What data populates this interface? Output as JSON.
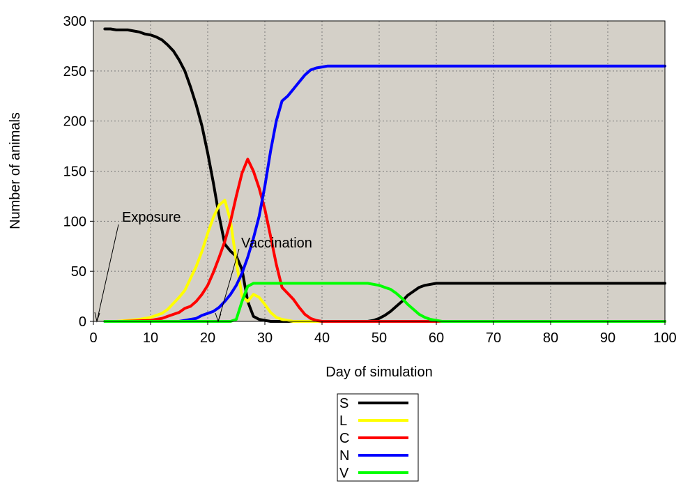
{
  "chart_data": {
    "type": "line",
    "xlabel": "Day of simulation",
    "ylabel": "Number of animals",
    "xlim": [
      0,
      100
    ],
    "ylim": [
      0,
      300
    ],
    "xticks": [
      "0",
      "10",
      "20",
      "30",
      "40",
      "50",
      "60",
      "70",
      "80",
      "90",
      "100"
    ],
    "yticks": [
      "0",
      "50",
      "100",
      "150",
      "200",
      "250",
      "300"
    ],
    "grid": true,
    "legend_placement": "bottom-center",
    "background_color": "#d4d0c8",
    "series": [
      {
        "name": "S",
        "color": "#000000",
        "x": [
          2,
          3,
          4,
          5,
          6,
          7,
          8,
          9,
          10,
          11,
          12,
          13,
          14,
          15,
          16,
          17,
          18,
          19,
          20,
          21,
          22,
          23,
          24,
          25,
          26,
          27,
          28,
          29,
          30,
          31,
          32,
          33,
          34,
          35,
          40,
          45,
          48,
          49,
          50,
          51,
          52,
          53,
          54,
          55,
          56,
          57,
          58,
          59,
          60,
          61,
          62,
          65,
          70,
          80,
          90,
          100
        ],
        "values": [
          292,
          292,
          291,
          291,
          291,
          290,
          289,
          287,
          286,
          284,
          281,
          276,
          270,
          261,
          250,
          234,
          216,
          195,
          168,
          138,
          105,
          77,
          70,
          65,
          52,
          20,
          5,
          2,
          1,
          0,
          0,
          0,
          0,
          0,
          0,
          0,
          0,
          1,
          3,
          6,
          10,
          15,
          20,
          26,
          30,
          34,
          36,
          37,
          38,
          38,
          38,
          38,
          38,
          38,
          38,
          38
        ]
      },
      {
        "name": "L",
        "color": "#ffff00",
        "x": [
          2,
          4,
          6,
          8,
          10,
          11,
          12,
          13,
          14,
          15,
          16,
          17,
          18,
          19,
          20,
          21,
          22,
          23,
          24,
          25,
          26,
          27,
          28,
          29,
          30,
          31,
          32,
          33,
          34,
          35,
          36,
          37,
          38,
          40,
          50,
          60,
          100
        ],
        "values": [
          0,
          0,
          1,
          2,
          4,
          6,
          8,
          12,
          18,
          24,
          31,
          43,
          55,
          70,
          88,
          104,
          116,
          121,
          100,
          60,
          25,
          20,
          27,
          24,
          17,
          9,
          4,
          2,
          1,
          0,
          0,
          0,
          0,
          0,
          0,
          0,
          0
        ]
      },
      {
        "name": "C",
        "color": "#ff0000",
        "x": [
          2,
          5,
          10,
          11,
          12,
          13,
          14,
          15,
          16,
          17,
          18,
          19,
          20,
          21,
          22,
          23,
          24,
          25,
          26,
          27,
          28,
          29,
          30,
          31,
          32,
          33,
          34,
          35,
          36,
          37,
          38,
          39,
          40,
          50,
          60,
          100
        ],
        "values": [
          0,
          0,
          1,
          2,
          3,
          5,
          7,
          9,
          13,
          15,
          20,
          27,
          36,
          49,
          64,
          80,
          100,
          125,
          148,
          162,
          150,
          133,
          112,
          85,
          57,
          34,
          28,
          22,
          14,
          7,
          3,
          1,
          0,
          0,
          0,
          0
        ]
      },
      {
        "name": "N",
        "color": "#0000ff",
        "x": [
          2,
          10,
          15,
          16,
          17,
          18,
          19,
          20,
          21,
          22,
          23,
          24,
          25,
          26,
          27,
          28,
          29,
          30,
          31,
          32,
          33,
          34,
          35,
          36,
          37,
          38,
          39,
          40,
          41,
          42,
          50,
          60,
          70,
          80,
          90,
          100
        ],
        "values": [
          0,
          0,
          0,
          1,
          2,
          3,
          6,
          8,
          10,
          14,
          20,
          27,
          36,
          48,
          64,
          83,
          105,
          135,
          170,
          200,
          220,
          225,
          232,
          239,
          246,
          251,
          253,
          254,
          255,
          255,
          255,
          255,
          255,
          255,
          255,
          255
        ]
      },
      {
        "name": "V",
        "color": "#00ff00",
        "x": [
          2,
          10,
          20,
          24,
          25,
          26,
          27,
          28,
          29,
          30,
          40,
          47,
          48,
          49,
          50,
          51,
          52,
          53,
          54,
          55,
          56,
          57,
          58,
          59,
          60,
          61,
          62,
          70,
          80,
          90,
          100
        ],
        "values": [
          0,
          0,
          0,
          0,
          2,
          20,
          35,
          38,
          38,
          38,
          38,
          38,
          38,
          37,
          36,
          34,
          32,
          28,
          23,
          17,
          12,
          7,
          4,
          2,
          1,
          0,
          0,
          0,
          0,
          0,
          0
        ]
      }
    ],
    "annotations": [
      {
        "text": "Exposure",
        "arrow_to_x": 0.5,
        "arrow_to_y": 0
      },
      {
        "text": "Vaccination",
        "arrow_to_x": 22,
        "arrow_to_y": 0
      }
    ]
  }
}
